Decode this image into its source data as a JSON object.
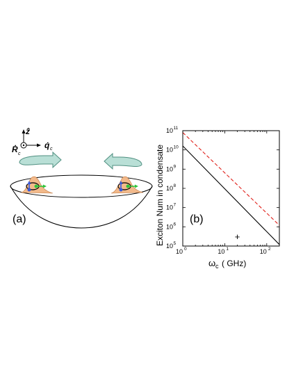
{
  "panel_a": {
    "label": "(a)",
    "axis_z": "ẑ",
    "axis_R": "Ṙ",
    "axis_R_sub": "c",
    "axis_q": "q̇",
    "axis_q_sub": "c",
    "colors": {
      "arrow_fill": "#b9dfd6",
      "arrow_stroke": "#4f8f80",
      "peak": "#f2b98a",
      "blue": "#3a5ad8",
      "green": "#2fc43c",
      "bowl": "#000000"
    }
  },
  "panel_b": {
    "label": "(b)",
    "marker": "+",
    "marker_point": {
      "x": 20,
      "y": 300000
    }
  },
  "chart_data": {
    "type": "line",
    "xlabel": "ω",
    "xlabel_sub": "c",
    "xlabel_unit": "( GHz)",
    "ylabel": "Exciton Num in condensate",
    "xscale": "log",
    "yscale": "log",
    "xlim": [
      1,
      200
    ],
    "ylim": [
      100000,
      100000000000
    ],
    "x_ticks": [
      {
        "value": 1,
        "base": "10",
        "exp": "0"
      },
      {
        "value": 10,
        "base": "10",
        "exp": "1"
      },
      {
        "value": 100,
        "base": "10",
        "exp": "2"
      }
    ],
    "y_ticks": [
      {
        "value": 100000,
        "base": "10",
        "exp": "5"
      },
      {
        "value": 1000000,
        "base": "10",
        "exp": "6"
      },
      {
        "value": 10000000,
        "base": "10",
        "exp": "7"
      },
      {
        "value": 100000000,
        "base": "10",
        "exp": "8"
      },
      {
        "value": 1000000000,
        "base": "10",
        "exp": "9"
      },
      {
        "value": 10000000000,
        "base": "10",
        "exp": "10"
      },
      {
        "value": 100000000000,
        "base": "10",
        "exp": "11"
      }
    ],
    "series": [
      {
        "style": "solid",
        "color": "#000000",
        "x": [
          1,
          200
        ],
        "y": [
          16000000000,
          120000
        ]
      },
      {
        "style": "dashed",
        "color": "#e0201a",
        "x": [
          1,
          200
        ],
        "y": [
          80000000000,
          1200000
        ]
      }
    ]
  }
}
